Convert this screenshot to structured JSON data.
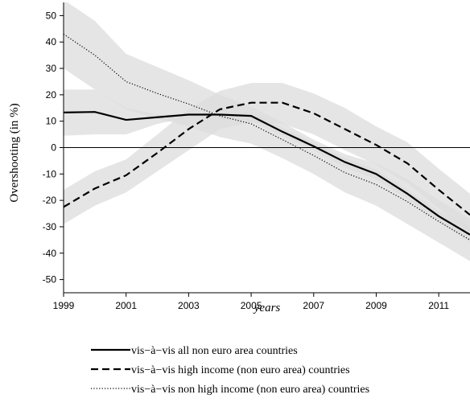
{
  "chart_data": {
    "type": "line",
    "xlabel": "years",
    "ylabel": "Overshooting (in %)",
    "xlim": [
      1999,
      2012
    ],
    "ylim": [
      -55,
      55
    ],
    "x_ticks": [
      "1999",
      "2001",
      "2003",
      "2005",
      "2007",
      "2009",
      "2011"
    ],
    "y_ticks": [
      "50",
      "40",
      "30",
      "20",
      "10",
      "0",
      "-10",
      "-20",
      "-30",
      "-40",
      "-50"
    ],
    "x": [
      1999,
      2000,
      2001,
      2002,
      2003,
      2004,
      2005,
      2006,
      2007,
      2008,
      2009,
      2010,
      2011,
      2012
    ],
    "series": [
      {
        "name": "vis−à−vis all non euro area countries",
        "style": "solid",
        "values": [
          13.3,
          13.5,
          10.5,
          11.5,
          12.5,
          12.5,
          12.0,
          6.0,
          0.5,
          -5.5,
          -10.0,
          -17.5,
          -26.0,
          -33.0
        ],
        "band_upper": [
          22.0,
          22.0,
          15.0,
          12.5,
          12.5,
          13.0,
          13.5,
          7.5,
          2.0,
          -4.0,
          -8.5,
          -16.0,
          -24.0,
          -30.0
        ],
        "band_lower": [
          4.5,
          5.0,
          5.0,
          9.0,
          11.5,
          11.0,
          10.0,
          4.5,
          -1.0,
          -7.5,
          -12.0,
          -19.5,
          -28.0,
          -36.0
        ]
      },
      {
        "name": "vis−à−vis high income (non euro area) countries",
        "style": "dashed",
        "values": [
          -22.5,
          -15.5,
          -10.5,
          -2.0,
          7.0,
          14.5,
          17.0,
          17.0,
          13.0,
          7.0,
          1.0,
          -6.0,
          -16.0,
          -25.5
        ],
        "band_upper": [
          -16.0,
          -9.0,
          -4.5,
          5.0,
          14.5,
          21.5,
          24.5,
          24.5,
          20.5,
          15.0,
          8.0,
          2.0,
          -8.0,
          -17.5
        ],
        "band_lower": [
          -29.0,
          -22.0,
          -17.0,
          -9.0,
          -1.0,
          7.0,
          9.5,
          9.0,
          5.0,
          -1.0,
          -6.5,
          -13.5,
          -23.0,
          -32.0
        ]
      },
      {
        "name": "vis−à−vis non high income (non euro area) countries",
        "style": "dotted",
        "values": [
          43.0,
          35.0,
          25.0,
          20.5,
          16.5,
          12.0,
          9.0,
          3.0,
          -3.0,
          -9.5,
          -14.0,
          -20.5,
          -28.0,
          -35.0
        ],
        "band_upper": [
          56.0,
          48.0,
          35.5,
          30.5,
          25.5,
          20.0,
          15.5,
          9.5,
          3.0,
          -2.5,
          -6.0,
          -12.0,
          -20.0,
          -27.0
        ],
        "band_lower": [
          30.0,
          22.0,
          14.5,
          11.0,
          8.0,
          4.0,
          1.5,
          -4.0,
          -10.0,
          -17.0,
          -22.0,
          -29.0,
          -36.0,
          -43.0
        ]
      }
    ],
    "legend_position": "bottom",
    "grid": false,
    "band_color": "#dcdcdc",
    "line_color": "#000000"
  }
}
